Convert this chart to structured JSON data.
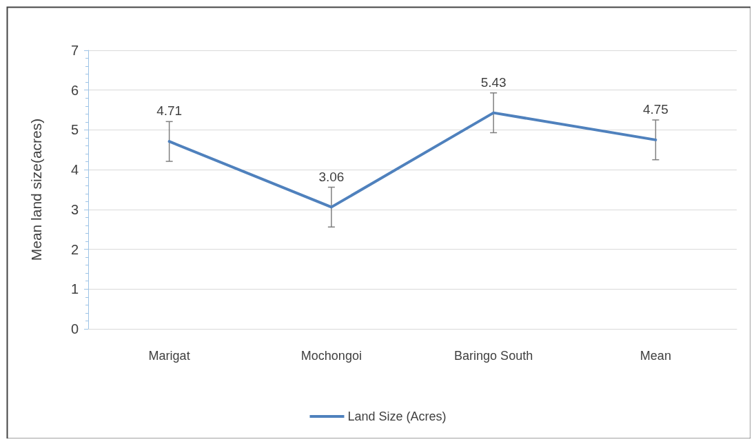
{
  "chart_data": {
    "type": "line",
    "ylabel": "Mean land size(acres)",
    "categories": [
      "Marigat",
      "Mochongoi",
      "Baringo South",
      "Mean"
    ],
    "series": [
      {
        "name": "Land Size (Acres)",
        "color": "#4f81bd",
        "values": [
          4.71,
          3.06,
          5.43,
          4.75
        ],
        "errors": [
          0.5,
          0.5,
          0.5,
          0.5
        ]
      }
    ],
    "ylim": [
      0,
      7
    ],
    "yticks": [
      0,
      1,
      2,
      3,
      4,
      5,
      6,
      7
    ],
    "grid": "y",
    "legend": "bottom",
    "data_labels": true,
    "marker": "none",
    "line_style": "solid"
  }
}
